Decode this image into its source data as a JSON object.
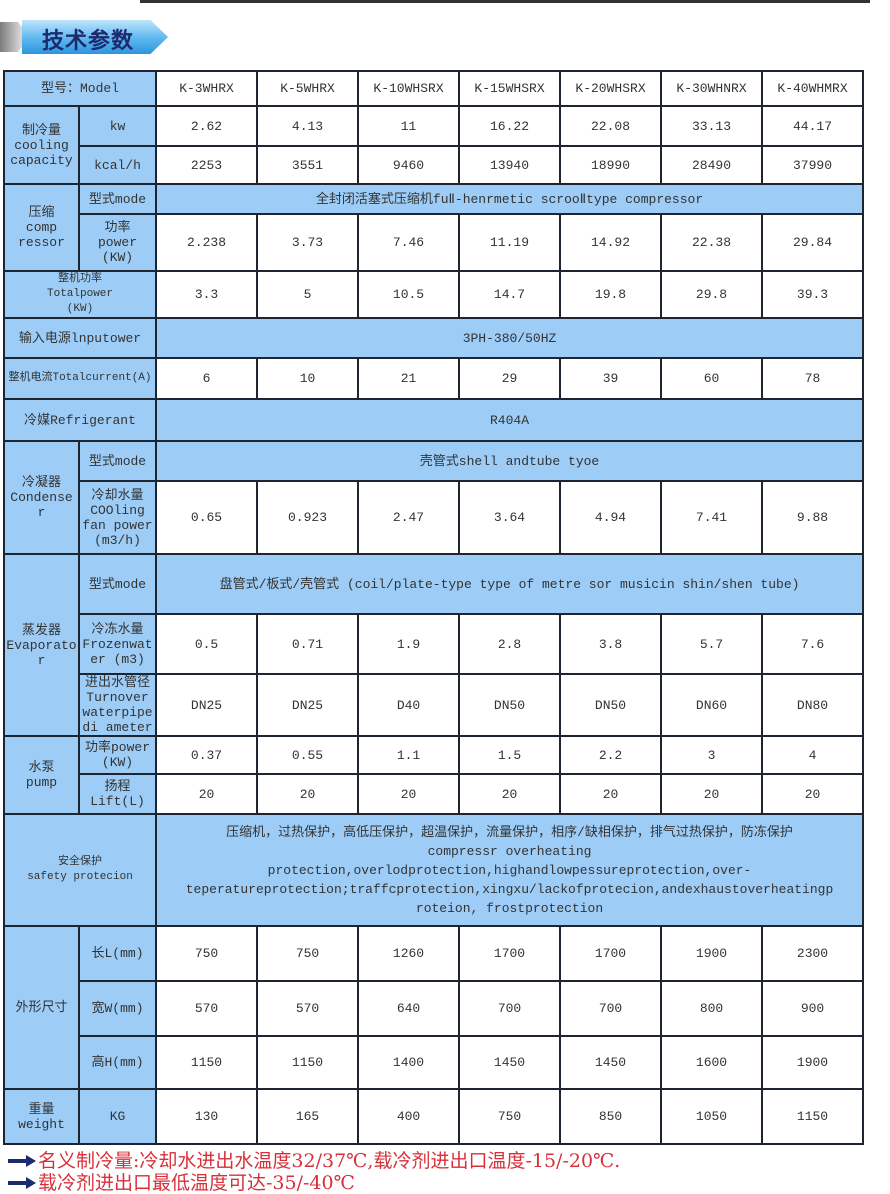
{
  "banner": {
    "title": "技术参数"
  },
  "colors": {
    "label_bg": "#9dcdf7",
    "border": "#1c2530",
    "note_text": "#d8303a",
    "banner_blue": "#2d95de",
    "banner_text": "#1d2a6e"
  },
  "table": {
    "model_label": "型号：Model",
    "models": [
      "K-3WHRX",
      "K-5WHRX",
      "K-10WHSRX",
      "K-15WHSRX",
      "K-20WHSRX",
      "K-30WHNRX",
      "K-40WHMRX"
    ],
    "sections": [
      {
        "label": "制冷量\ncooling\ncapacity",
        "rows": [
          {
            "label": "kw",
            "values": [
              "2.62",
              "4.13",
              "11",
              "16.22",
              "22.08",
              "33.13",
              "44.17"
            ]
          },
          {
            "label": "kcal/h",
            "values": [
              "2253",
              "3551",
              "9460",
              "13940",
              "18990",
              "28490",
              "37990"
            ]
          }
        ]
      },
      {
        "label": "压缩\ncomp\nressor",
        "rows": [
          {
            "label": "型式mode",
            "span": "全封闭活塞式压缩机fuⅡ-henrmetic scrooⅡtype compressor"
          },
          {
            "label": "功率\npower\n(KW)",
            "values": [
              "2.238",
              "3.73",
              "7.46",
              "11.19",
              "14.92",
              "22.38",
              "29.84"
            ]
          }
        ]
      },
      {
        "label": "整机功率\nTotalpower\n(KW)",
        "values": [
          "3.3",
          "5",
          "10.5",
          "14.7",
          "19.8",
          "29.8",
          "39.3"
        ]
      },
      {
        "label": "输入电源lnputower",
        "span": "3PH-380/50HZ"
      },
      {
        "label": "整机电流Totalcurrent(A)",
        "values": [
          "6",
          "10",
          "21",
          "29",
          "39",
          "60",
          "78"
        ]
      },
      {
        "label": "冷媒Refrigerant",
        "span": "R404A"
      },
      {
        "label": "冷凝器\nCondense\nr",
        "rows": [
          {
            "label": "型式mode",
            "span": "壳管式shell andtube tyoe"
          },
          {
            "label": "冷却水量\nCOOling\nfan power\n(m3/h)",
            "values": [
              "0.65",
              "0.923",
              "2.47",
              "3.64",
              "4.94",
              "7.41",
              "9.88"
            ]
          }
        ]
      },
      {
        "label": "蒸发器\nEvaporato\nr",
        "rows": [
          {
            "label": "型式mode",
            "span": "盘管式/板式/壳管式 (coil/plate-type type of metre sor musicin shin/shen tube)"
          },
          {
            "label": "冷冻水量\nFrozenwat\ner (m3)",
            "values": [
              "0.5",
              "0.71",
              "1.9",
              "2.8",
              "3.8",
              "5.7",
              "7.6"
            ]
          },
          {
            "label": "进出水管径\nTurnover\nwaterpipe\ndi ameter",
            "values": [
              "DN25",
              "DN25",
              "D40",
              "DN50",
              "DN50",
              "DN60",
              "DN80"
            ]
          }
        ]
      },
      {
        "label": "水泵\npump",
        "rows": [
          {
            "label": "功率power\n(KW)",
            "values": [
              "0.37",
              "0.55",
              "1.1",
              "1.5",
              "2.2",
              "3",
              "4"
            ]
          },
          {
            "label": "扬程\nLift(L)",
            "values": [
              "20",
              "20",
              "20",
              "20",
              "20",
              "20",
              "20"
            ]
          }
        ]
      },
      {
        "label": "安全保护\nsafety protecion",
        "span": "压缩机，过热保护，高低压保护，超温保护，流量保护，相序/缺相保护，排气过热保护，防冻保护\ncompressr overheating\nprotection,overlodprotection,highandlowpessureprotection,over-\nteperatureprotection;traffcprotection,xingxu/lackofprotecion,andexhaustoverheatingp\nroteion,     frostprotection"
      },
      {
        "label": "外形尺寸",
        "rows": [
          {
            "label": "长L(mm)",
            "values": [
              "750",
              "750",
              "1260",
              "1700",
              "1700",
              "1900",
              "2300"
            ]
          },
          {
            "label": "宽W(mm)",
            "values": [
              "570",
              "570",
              "640",
              "700",
              "700",
              "800",
              "900"
            ]
          },
          {
            "label": "高H(mm)",
            "values": [
              "1150",
              "1150",
              "1400",
              "1450",
              "1450",
              "1600",
              "1900"
            ]
          }
        ]
      },
      {
        "label": "重量\nweight",
        "rows": [
          {
            "label": "KG",
            "values": [
              "130",
              "165",
              "400",
              "750",
              "850",
              "1050",
              "1150"
            ]
          }
        ]
      }
    ]
  },
  "notes": [
    "名义制冷量:冷却水进出水温度32/37℃,载冷剂进出口温度-15/-20℃.",
    "载冷剂进出口最低温度可达-35/-40℃"
  ]
}
